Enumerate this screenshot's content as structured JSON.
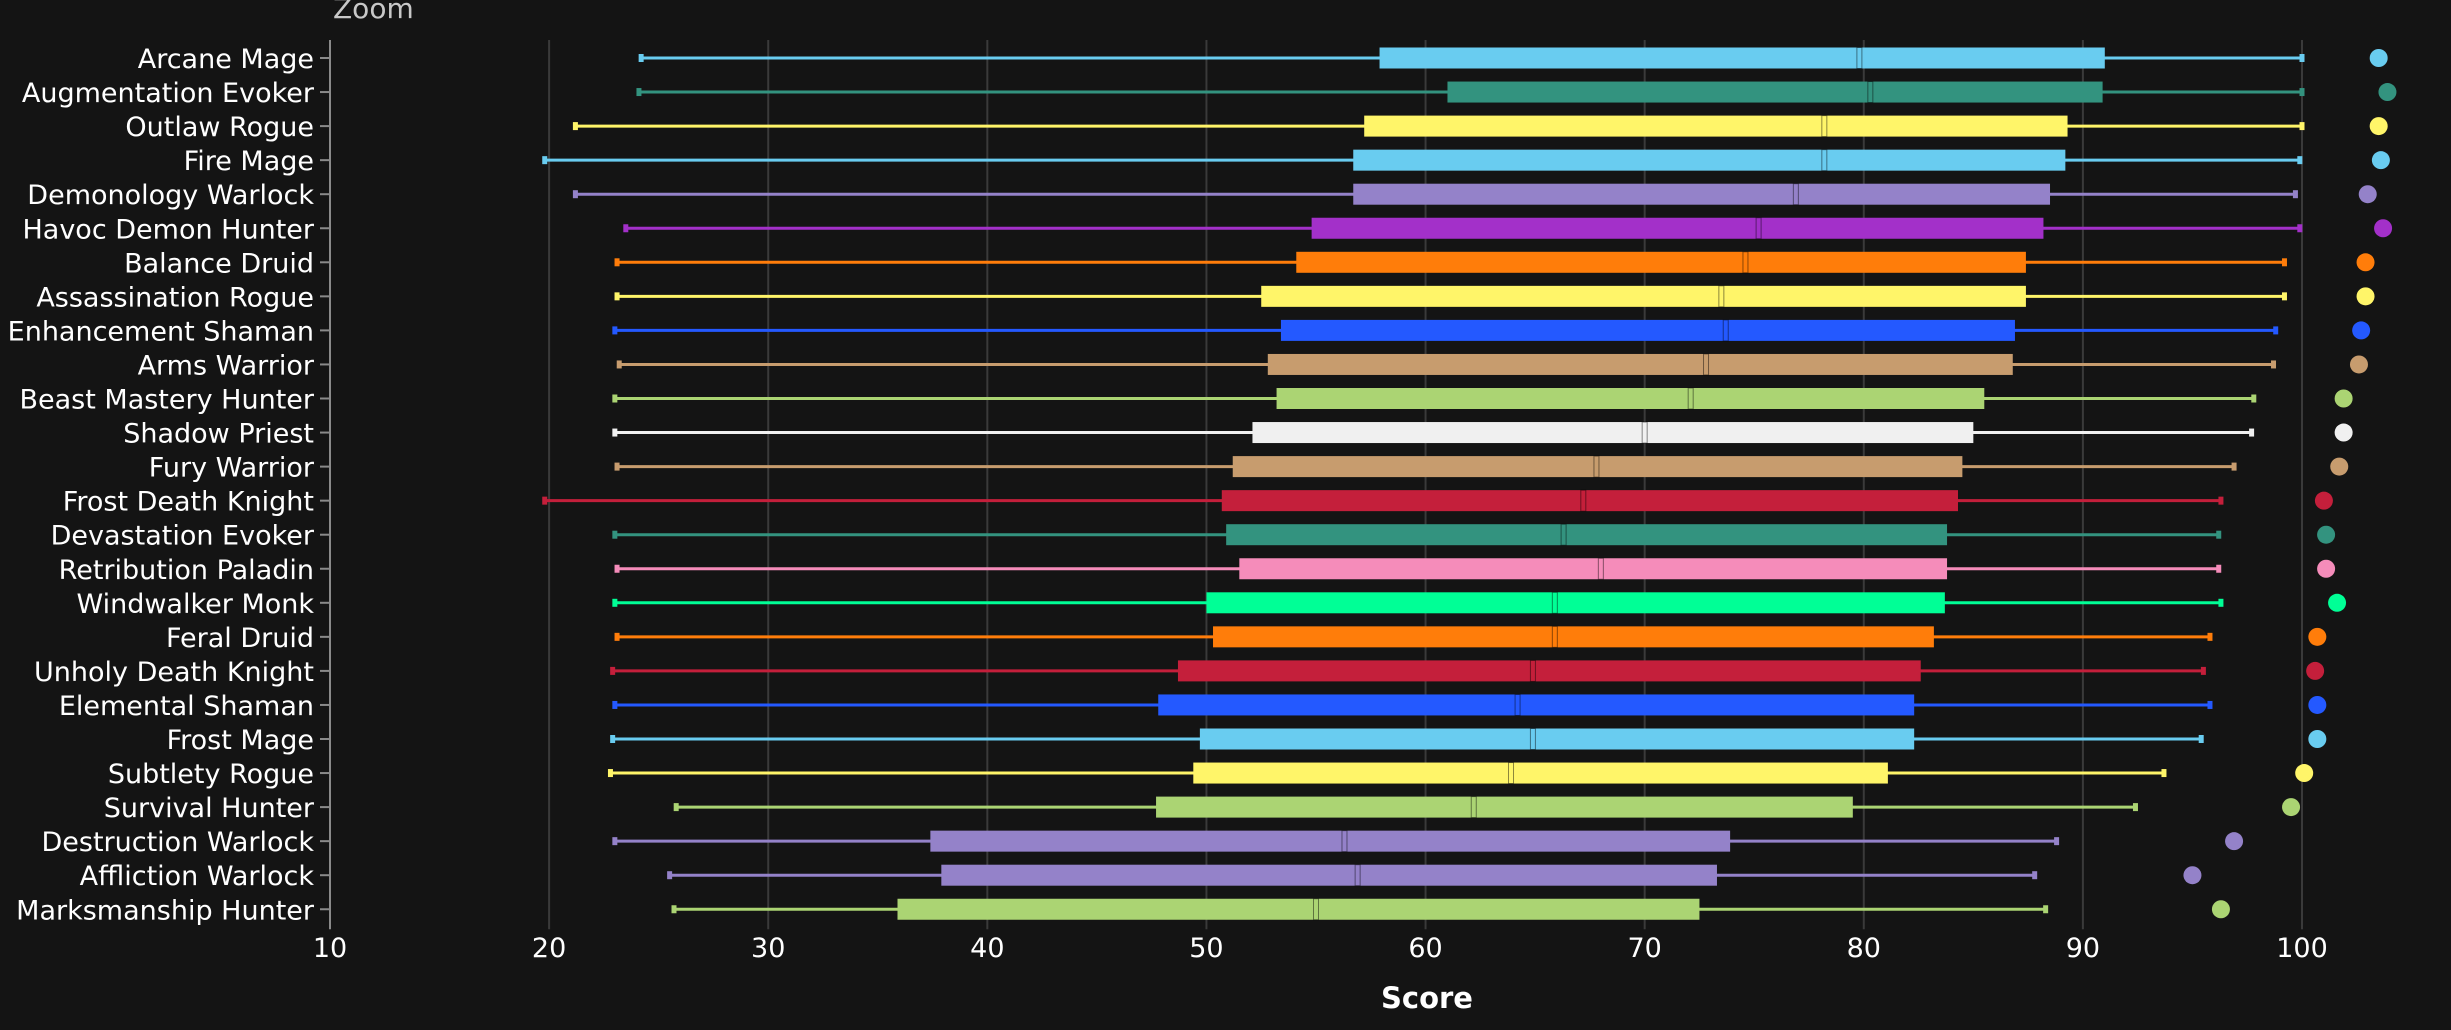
{
  "zoom_label": "Zoom",
  "chart_data": {
    "type": "box",
    "orientation": "horizontal",
    "xlabel": "Score",
    "xlim": [
      10,
      100
    ],
    "xticks": [
      10,
      20,
      30,
      40,
      50,
      60,
      70,
      80,
      90,
      100
    ],
    "grid": true,
    "legend": "none",
    "series": [
      {
        "name": "Arcane Mage",
        "color": "#69CCF0",
        "min": 24.2,
        "q1": 57.9,
        "median": 79.8,
        "q3": 91.0,
        "max": 100.0,
        "max_point": 103.5
      },
      {
        "name": "Augmentation Evoker",
        "color": "#33937F",
        "min": 24.1,
        "q1": 61.0,
        "median": 80.3,
        "q3": 90.9,
        "max": 100.0,
        "max_point": 103.9
      },
      {
        "name": "Outlaw Rogue",
        "color": "#FFF569",
        "min": 21.2,
        "q1": 57.2,
        "median": 78.2,
        "q3": 89.3,
        "max": 100.0,
        "max_point": 103.5
      },
      {
        "name": "Fire Mage",
        "color": "#69CCF0",
        "min": 19.8,
        "q1": 56.7,
        "median": 78.2,
        "q3": 89.2,
        "max": 99.9,
        "max_point": 103.6
      },
      {
        "name": "Demonology Warlock",
        "color": "#9482C9",
        "min": 21.2,
        "q1": 56.7,
        "median": 76.9,
        "q3": 88.5,
        "max": 99.7,
        "max_point": 103.0
      },
      {
        "name": "Havoc Demon Hunter",
        "color": "#A330C9",
        "min": 23.5,
        "q1": 54.8,
        "median": 75.2,
        "q3": 88.2,
        "max": 99.9,
        "max_point": 103.7
      },
      {
        "name": "Balance Druid",
        "color": "#FF7D0A",
        "min": 23.1,
        "q1": 54.1,
        "median": 74.6,
        "q3": 87.4,
        "max": 99.2,
        "max_point": 102.9
      },
      {
        "name": "Assassination Rogue",
        "color": "#FFF569",
        "min": 23.1,
        "q1": 52.5,
        "median": 73.5,
        "q3": 87.4,
        "max": 99.2,
        "max_point": 102.9
      },
      {
        "name": "Enhancement Shaman",
        "color": "#2459FF",
        "min": 23.0,
        "q1": 53.4,
        "median": 73.7,
        "q3": 86.9,
        "max": 98.8,
        "max_point": 102.7
      },
      {
        "name": "Arms Warrior",
        "color": "#C79C6E",
        "min": 23.2,
        "q1": 52.8,
        "median": 72.8,
        "q3": 86.8,
        "max": 98.7,
        "max_point": 102.6
      },
      {
        "name": "Beast Mastery Hunter",
        "color": "#ABD473",
        "min": 23.0,
        "q1": 53.2,
        "median": 72.1,
        "q3": 85.5,
        "max": 97.8,
        "max_point": 101.9
      },
      {
        "name": "Shadow Priest",
        "color": "#F0F0F0",
        "min": 23.0,
        "q1": 52.1,
        "median": 70.0,
        "q3": 85.0,
        "max": 97.7,
        "max_point": 101.9
      },
      {
        "name": "Fury Warrior",
        "color": "#C79C6E",
        "min": 23.1,
        "q1": 51.2,
        "median": 67.8,
        "q3": 84.5,
        "max": 96.9,
        "max_point": 101.7
      },
      {
        "name": "Frost Death Knight",
        "color": "#C41F3B",
        "min": 19.8,
        "q1": 50.7,
        "median": 67.2,
        "q3": 84.3,
        "max": 96.3,
        "max_point": 101.0
      },
      {
        "name": "Devastation Evoker",
        "color": "#33937F",
        "min": 23.0,
        "q1": 50.9,
        "median": 66.3,
        "q3": 83.8,
        "max": 96.2,
        "max_point": 101.1
      },
      {
        "name": "Retribution Paladin",
        "color": "#F58CBA",
        "min": 23.1,
        "q1": 51.5,
        "median": 68.0,
        "q3": 83.8,
        "max": 96.2,
        "max_point": 101.1
      },
      {
        "name": "Windwalker Monk",
        "color": "#00FF96",
        "min": 23.0,
        "q1": 50.0,
        "median": 65.9,
        "q3": 83.7,
        "max": 96.3,
        "max_point": 101.6
      },
      {
        "name": "Feral Druid",
        "color": "#FF7D0A",
        "min": 23.1,
        "q1": 50.3,
        "median": 65.9,
        "q3": 83.2,
        "max": 95.8,
        "max_point": 100.7
      },
      {
        "name": "Unholy Death Knight",
        "color": "#C41F3B",
        "min": 22.9,
        "q1": 48.7,
        "median": 64.9,
        "q3": 82.6,
        "max": 95.5,
        "max_point": 100.6
      },
      {
        "name": "Elemental Shaman",
        "color": "#2459FF",
        "min": 23.0,
        "q1": 47.8,
        "median": 64.2,
        "q3": 82.3,
        "max": 95.8,
        "max_point": 100.7
      },
      {
        "name": "Frost Mage",
        "color": "#69CCF0",
        "min": 22.9,
        "q1": 49.7,
        "median": 64.9,
        "q3": 82.3,
        "max": 95.4,
        "max_point": 100.7
      },
      {
        "name": "Subtlety Rogue",
        "color": "#FFF569",
        "min": 22.8,
        "q1": 49.4,
        "median": 63.9,
        "q3": 81.1,
        "max": 93.7,
        "max_point": 100.1
      },
      {
        "name": "Survival Hunter",
        "color": "#ABD473",
        "min": 25.8,
        "q1": 47.7,
        "median": 62.2,
        "q3": 79.5,
        "max": 92.4,
        "max_point": 99.5
      },
      {
        "name": "Destruction Warlock",
        "color": "#9482C9",
        "min": 23.0,
        "q1": 37.4,
        "median": 56.3,
        "q3": 73.9,
        "max": 88.8,
        "max_point": 96.9
      },
      {
        "name": "Affliction Warlock",
        "color": "#9482C9",
        "min": 25.5,
        "q1": 37.9,
        "median": 56.9,
        "q3": 73.3,
        "max": 87.8,
        "max_point": 95.0
      },
      {
        "name": "Marksmanship Hunter",
        "color": "#ABD473",
        "min": 25.7,
        "q1": 35.9,
        "median": 55.0,
        "q3": 72.5,
        "max": 88.3,
        "max_point": 96.3
      }
    ]
  }
}
